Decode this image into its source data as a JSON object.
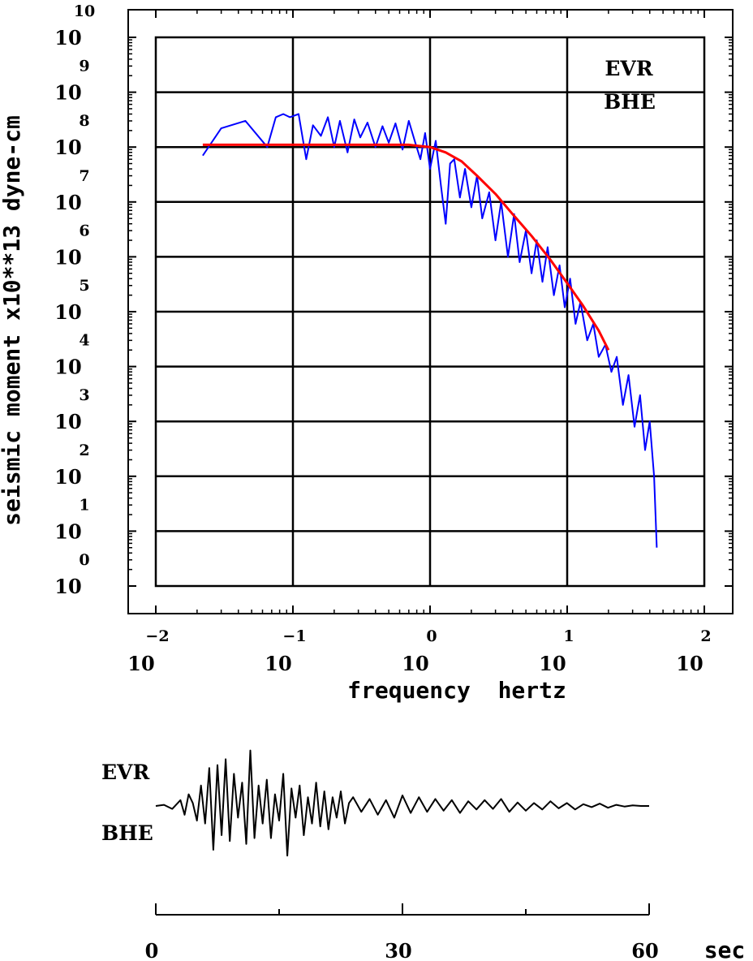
{
  "chart_data": [
    {
      "type": "line",
      "xscale": "log",
      "yscale": "log",
      "xlabel": "frequency  hertz",
      "ylabel": "seismic moment x10**13 dyne-cm",
      "xlim": [
        0.01,
        100
      ],
      "ylim": [
        1,
        10000000000
      ],
      "x_ticks": [
        {
          "base": "10",
          "exp": "−2",
          "value": 0.01
        },
        {
          "base": "10",
          "exp": "−1",
          "value": 0.1
        },
        {
          "base": "10",
          "exp": "0",
          "value": 1
        },
        {
          "base": "10",
          "exp": "1",
          "value": 10
        },
        {
          "base": "10",
          "exp": "2",
          "value": 100
        }
      ],
      "y_ticks": [
        {
          "base": "10",
          "exp": "0",
          "value": 1
        },
        {
          "base": "10",
          "exp": "1",
          "value": 10
        },
        {
          "base": "10",
          "exp": "2",
          "value": 100
        },
        {
          "base": "10",
          "exp": "3",
          "value": 1000
        },
        {
          "base": "10",
          "exp": "4",
          "value": 10000
        },
        {
          "base": "10",
          "exp": "5",
          "value": 100000
        },
        {
          "base": "10",
          "exp": "6",
          "value": 1000000
        },
        {
          "base": "10",
          "exp": "7",
          "value": 10000000
        },
        {
          "base": "10",
          "exp": "8",
          "value": 100000000
        },
        {
          "base": "10",
          "exp": "9",
          "value": 1000000000
        },
        {
          "base": "10",
          "exp": "10",
          "value": 10000000000
        }
      ],
      "grid": true,
      "legend": {
        "station": "EVR",
        "component": "BHE",
        "position": "top-right"
      },
      "series": [
        {
          "color": "#0000ff",
          "x": [
            0.022,
            0.03,
            0.045,
            0.065,
            0.075,
            0.085,
            0.095,
            0.11,
            0.125,
            0.14,
            0.16,
            0.18,
            0.2,
            0.22,
            0.25,
            0.28,
            0.31,
            0.35,
            0.4,
            0.45,
            0.5,
            0.56,
            0.63,
            0.7,
            0.78,
            0.85,
            0.92,
            1.0,
            1.1,
            1.2,
            1.3,
            1.4,
            1.5,
            1.65,
            1.8,
            2.0,
            2.2,
            2.4,
            2.7,
            3.0,
            3.3,
            3.7,
            4.1,
            4.5,
            5.0,
            5.5,
            6.0,
            6.6,
            7.2,
            8.0,
            8.8,
            9.6,
            10.5,
            11.5,
            12.5,
            14.0,
            15.5,
            17.0,
            19.0,
            21.0,
            23.0,
            25.5,
            28.0,
            31.0,
            34.0,
            37.0,
            40.0,
            43.0,
            45.0
          ],
          "y": [
            70000000,
            220000000,
            300000000,
            100000000,
            350000000,
            400000000,
            350000000,
            400000000,
            60000000,
            250000000,
            160000000,
            350000000,
            100000000,
            300000000,
            80000000,
            320000000,
            150000000,
            280000000,
            100000000,
            240000000,
            120000000,
            270000000,
            90000000,
            300000000,
            120000000,
            60000000,
            180000000,
            40000000,
            130000000,
            20000000,
            4000000,
            50000000,
            60000000,
            12000000,
            40000000,
            8000000,
            30000000,
            5000000,
            15000000,
            2000000,
            10000000,
            1000000,
            6000000,
            800000,
            3000000,
            500000,
            2000000,
            350000,
            1500000,
            200000,
            700000,
            120000,
            400000,
            60000,
            150000,
            30000,
            60000,
            15000,
            25000,
            8000,
            15000,
            2000,
            7000,
            800,
            3000,
            300,
            1000,
            100,
            5
          ]
        },
        {
          "color": "#ff0000",
          "x": [
            0.022,
            0.05,
            0.1,
            0.2,
            0.4,
            0.7,
            1.0,
            1.3,
            1.7,
            2.2,
            3.0,
            4.0,
            5.5,
            7.5,
            10.0,
            13.0,
            17.0,
            20.0
          ],
          "y": [
            110000000,
            110000000,
            110000000,
            110000000,
            110000000,
            110000000,
            100000000,
            80000000,
            55000000,
            30000000,
            14000000,
            6000000,
            2400000,
            900000,
            330000,
            130000,
            45000,
            20000
          ]
        }
      ]
    },
    {
      "type": "line",
      "station": "EVR",
      "component": "BHE",
      "xlabel": "sec",
      "xlim": [
        0,
        60
      ],
      "x_ticks": [
        "0",
        "30",
        "60"
      ],
      "series": [
        {
          "color": "#000000",
          "x": [
            0,
            1,
            2,
            3,
            3.5,
            4,
            4.5,
            5,
            5.5,
            6,
            6.5,
            7,
            7.5,
            8,
            8.5,
            9,
            9.5,
            10,
            10.5,
            11,
            11.5,
            12,
            12.5,
            13,
            13.5,
            14,
            14.5,
            15,
            15.5,
            16,
            16.5,
            17,
            17.5,
            18,
            18.5,
            19,
            19.5,
            20,
            20.5,
            21,
            21.5,
            22,
            22.5,
            23,
            23.5,
            24,
            25,
            26,
            27,
            28,
            29,
            30,
            31,
            32,
            33,
            34,
            35,
            36,
            37,
            38,
            39,
            40,
            41,
            42,
            43,
            44,
            45,
            46,
            47,
            48,
            49,
            50,
            51,
            52,
            53,
            54,
            55,
            56,
            57,
            58,
            59,
            60
          ],
          "y": [
            0,
            0.02,
            -0.05,
            0.1,
            -0.15,
            0.2,
            0.05,
            -0.25,
            0.35,
            -0.3,
            0.65,
            -0.75,
            0.7,
            -0.5,
            0.8,
            -0.6,
            0.55,
            -0.2,
            0.4,
            -0.65,
            0.95,
            -0.55,
            0.35,
            -0.3,
            0.45,
            -0.55,
            0.2,
            -0.25,
            0.55,
            -0.85,
            0.3,
            -0.2,
            0.35,
            -0.5,
            0.15,
            -0.3,
            0.4,
            -0.35,
            0.25,
            -0.4,
            0.15,
            -0.2,
            0.25,
            -0.3,
            0.05,
            0.15,
            -0.1,
            0.12,
            -0.15,
            0.1,
            -0.2,
            0.18,
            -0.12,
            0.15,
            -0.1,
            0.12,
            -0.08,
            0.1,
            -0.12,
            0.08,
            -0.06,
            0.1,
            -0.05,
            0.12,
            -0.1,
            0.06,
            -0.08,
            0.05,
            -0.06,
            0.08,
            -0.04,
            0.05,
            -0.06,
            0.03,
            -0.02,
            0.04,
            -0.03,
            0.02,
            -0.01,
            0.01,
            0,
            0
          ]
        }
      ]
    }
  ]
}
